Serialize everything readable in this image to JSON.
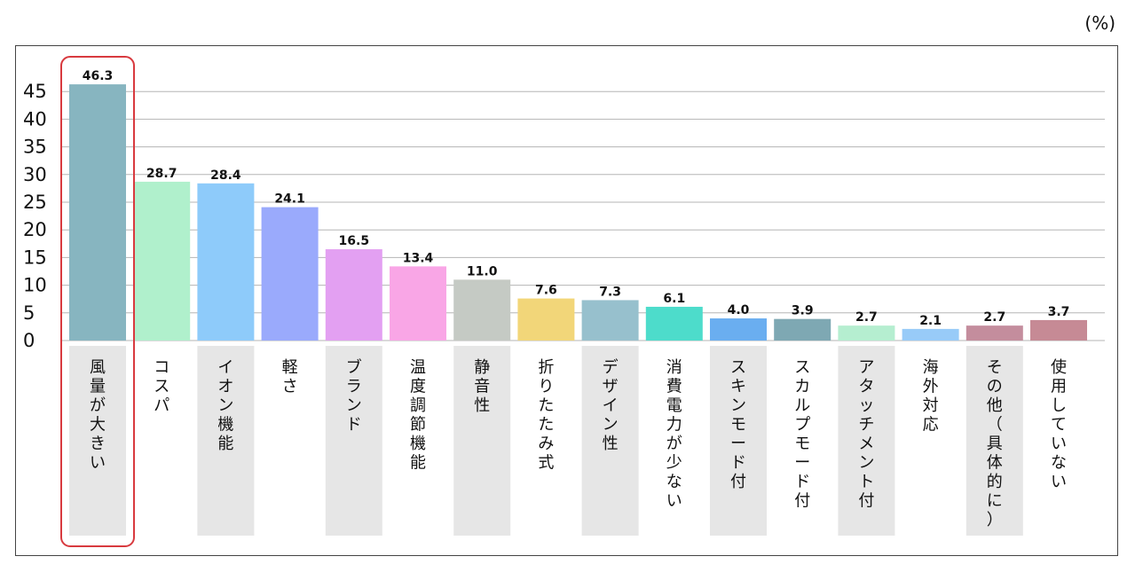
{
  "unit_label": "(%)",
  "chart_data": {
    "type": "bar",
    "categories": [
      "風量が大きい",
      "コスパ",
      "イオン機能",
      "軽さ",
      "ブランド",
      "温度調節機能",
      "静音性",
      "折りたたみ式",
      "デザイン性",
      "消費電力が少ない",
      "スキンモード付",
      "スカルプモード付",
      "アタッチメント付",
      "海外対応",
      "その他（具体的に）",
      "使用していない"
    ],
    "values": [
      46.3,
      28.7,
      28.4,
      24.1,
      16.5,
      13.4,
      11.0,
      7.6,
      7.3,
      6.1,
      4.0,
      3.9,
      2.7,
      2.1,
      2.7,
      3.7
    ],
    "value_labels": [
      "46.3",
      "28.7",
      "28.4",
      "24.1",
      "16.5",
      "13.4",
      "11.0",
      "7.6",
      "7.3",
      "6.1",
      "4.0",
      "3.9",
      "2.7",
      "2.1",
      "2.7",
      "3.7"
    ],
    "bar_colors": [
      "#87b5c0",
      "#b0f0cc",
      "#8ecbfa",
      "#9aaafc",
      "#e3a0f2",
      "#f9a6e6",
      "#c5cac4",
      "#f2d679",
      "#97c0cd",
      "#4ddccb",
      "#6aaef0",
      "#7ea8b3",
      "#b5eed0",
      "#98cbf8",
      "#c48d9d",
      "#c68a95"
    ],
    "yticks": [
      0,
      5,
      10,
      15,
      20,
      25,
      30,
      35,
      40,
      45
    ],
    "ylim": [
      0,
      50
    ],
    "grid": true,
    "highlight_index": 0,
    "highlight_color": "#d83a3f",
    "label_band_color": "#e6e6e6",
    "label_band_categories": [
      0,
      2,
      4,
      6,
      8,
      10,
      12,
      14
    ]
  }
}
